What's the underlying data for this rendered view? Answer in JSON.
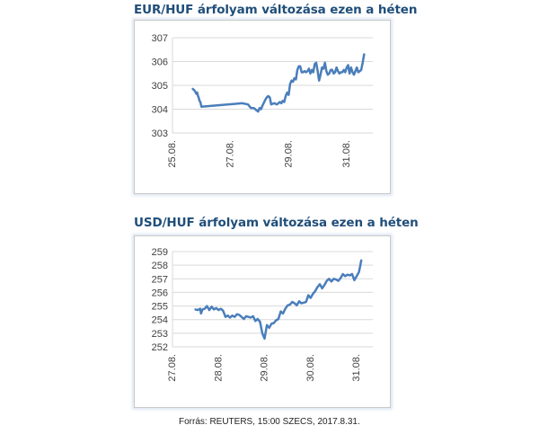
{
  "colors": {
    "title": "#1f4e79",
    "line": "#4a7ebb",
    "grid": "#d9d9d9",
    "frame_glow": "#dfe7f3"
  },
  "source_note": "Forrás: REUTERS, 15:00 SZECS, 2017.8.31.",
  "chart_data": [
    {
      "type": "line",
      "title": "EUR/HUF árfolyam változása ezen a héten",
      "xlabel": "",
      "ylabel": "",
      "ylim": [
        303,
        307
      ],
      "yticks": [
        303,
        304,
        305,
        306,
        307
      ],
      "xlim": [
        25.0,
        31.9
      ],
      "xticks": [
        {
          "value": 25,
          "label": "25.08."
        },
        {
          "value": 27,
          "label": "27.08."
        },
        {
          "value": 29,
          "label": "29.08."
        },
        {
          "value": 31,
          "label": "31.08."
        }
      ],
      "grid": "horizontal",
      "legend": "none",
      "series": [
        {
          "x": [
            25.7,
            25.75,
            25.8,
            25.82,
            25.85,
            25.88,
            25.9,
            25.93,
            25.96,
            26.0,
            27.4,
            27.6,
            27.7,
            27.8,
            27.85,
            27.95,
            28.0,
            28.05,
            28.1,
            28.2,
            28.25,
            28.3,
            28.35,
            28.4,
            28.5,
            28.6,
            28.7,
            28.75,
            28.8,
            28.85,
            28.9,
            28.95,
            29.0,
            29.05,
            29.1,
            29.15,
            29.2,
            29.25,
            29.3,
            29.35,
            29.4,
            29.45,
            29.5,
            29.55,
            29.6,
            29.65,
            29.7,
            29.75,
            29.8,
            29.85,
            29.9,
            29.95,
            30.0,
            30.05,
            30.1,
            30.15,
            30.2,
            30.25,
            30.3,
            30.35,
            30.4,
            30.45,
            30.5,
            30.55,
            30.6,
            30.65,
            30.7,
            30.75,
            30.8,
            30.85,
            30.9,
            30.95,
            31.0,
            31.05,
            31.1,
            31.15,
            31.2,
            31.25,
            31.3,
            31.35,
            31.4,
            31.45,
            31.5,
            31.55,
            31.6
          ],
          "values": [
            304.85,
            304.8,
            304.7,
            304.65,
            304.7,
            304.55,
            304.5,
            304.35,
            304.3,
            304.1,
            304.25,
            304.2,
            304.05,
            304.05,
            304.0,
            303.9,
            304.05,
            304.0,
            304.15,
            304.4,
            304.5,
            304.55,
            304.5,
            304.2,
            304.25,
            304.2,
            304.3,
            304.25,
            304.35,
            304.3,
            304.55,
            304.7,
            304.6,
            305.05,
            305.2,
            305.15,
            305.3,
            305.25,
            305.65,
            305.8,
            305.8,
            305.55,
            305.55,
            305.6,
            305.55,
            305.6,
            305.7,
            305.5,
            305.65,
            305.55,
            305.9,
            305.95,
            305.6,
            305.2,
            305.45,
            305.75,
            305.7,
            305.95,
            305.6,
            305.45,
            305.5,
            305.65,
            305.65,
            305.5,
            305.55,
            305.75,
            305.6,
            305.5,
            305.55,
            305.55,
            305.65,
            305.55,
            305.75,
            305.85,
            305.5,
            305.75,
            305.55,
            305.45,
            305.6,
            305.75,
            305.55,
            305.6,
            305.65,
            305.95,
            306.3
          ]
        }
      ]
    },
    {
      "type": "line",
      "title": "USD/HUF árfolyam változása ezen a héten",
      "xlabel": "",
      "ylabel": "",
      "ylim": [
        252,
        259
      ],
      "yticks": [
        252,
        253,
        254,
        255,
        256,
        257,
        258,
        259
      ],
      "xlim": [
        27.0,
        31.35
      ],
      "xticks": [
        {
          "value": 27,
          "label": "27.08."
        },
        {
          "value": 28,
          "label": "28.08."
        },
        {
          "value": 29,
          "label": "29.08."
        },
        {
          "value": 30,
          "label": "30.08."
        },
        {
          "value": 31,
          "label": "31.08."
        }
      ],
      "grid": "horizontal",
      "legend": "none",
      "series": [
        {
          "x": [
            27.5,
            27.55,
            27.6,
            27.62,
            27.65,
            27.7,
            27.75,
            27.8,
            27.85,
            27.9,
            27.95,
            28.0,
            28.05,
            28.1,
            28.15,
            28.2,
            28.25,
            28.3,
            28.35,
            28.4,
            28.45,
            28.5,
            28.55,
            28.6,
            28.65,
            28.7,
            28.75,
            28.8,
            28.85,
            28.9,
            28.95,
            29.0,
            29.05,
            29.1,
            29.15,
            29.2,
            29.25,
            29.3,
            29.35,
            29.4,
            29.45,
            29.5,
            29.55,
            29.6,
            29.65,
            29.7,
            29.75,
            29.8,
            29.85,
            29.9,
            29.95,
            30.0,
            30.05,
            30.1,
            30.15,
            30.2,
            30.25,
            30.3,
            30.35,
            30.4,
            30.45,
            30.5,
            30.55,
            30.6,
            30.65,
            30.7,
            30.75,
            30.8,
            30.85,
            30.9,
            30.95,
            31.0,
            31.05,
            31.1
          ],
          "values": [
            254.75,
            254.7,
            254.8,
            254.45,
            254.75,
            254.8,
            255.0,
            254.7,
            254.95,
            254.75,
            254.85,
            254.7,
            254.8,
            254.65,
            254.2,
            254.3,
            254.15,
            254.3,
            254.2,
            254.4,
            254.35,
            254.2,
            254.05,
            254.25,
            254.2,
            254.15,
            254.25,
            253.9,
            254.05,
            253.85,
            253.0,
            252.6,
            253.6,
            253.4,
            253.7,
            253.75,
            253.95,
            254.05,
            254.6,
            254.45,
            254.8,
            255.05,
            255.1,
            255.3,
            255.2,
            255.05,
            255.35,
            255.2,
            255.25,
            255.3,
            255.8,
            255.6,
            255.9,
            256.1,
            256.4,
            256.6,
            256.3,
            256.55,
            256.85,
            257.0,
            256.8,
            257.0,
            256.95,
            256.85,
            257.05,
            257.35,
            257.2,
            257.3,
            257.25,
            257.35,
            256.9,
            257.2,
            257.5,
            258.35
          ]
        }
      ]
    }
  ]
}
